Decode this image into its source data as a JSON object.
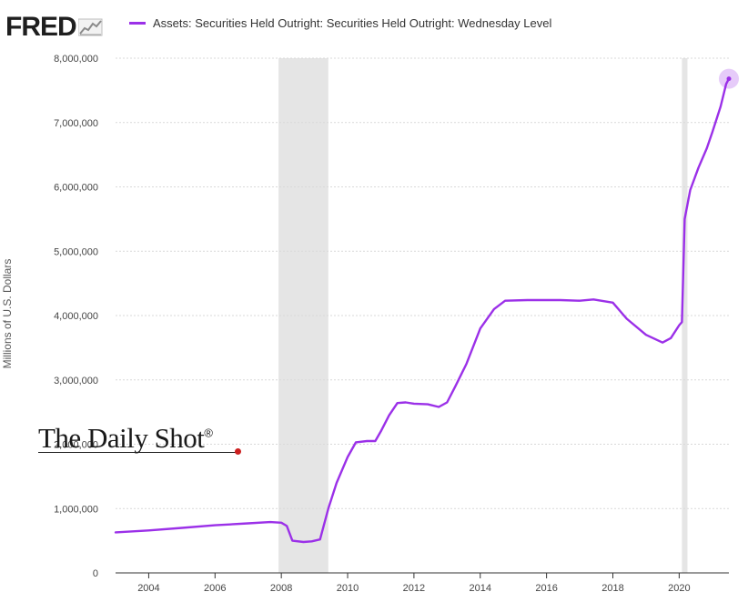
{
  "header": {
    "logo": "FRED",
    "logo_icon": "line-chart-icon"
  },
  "chart_data": {
    "type": "line",
    "title": "",
    "ylabel": "Millions of U.S. Dollars",
    "xlabel": "",
    "ylim": [
      0,
      8000000
    ],
    "xlim": [
      "2003-01",
      "2021-07"
    ],
    "grid": true,
    "legend_position": "top-left",
    "yticks": [
      {
        "value": 0,
        "label": "0"
      },
      {
        "value": 1000000,
        "label": "1,000,000"
      },
      {
        "value": 2000000,
        "label": "2,000,000"
      },
      {
        "value": 3000000,
        "label": "3,000,000"
      },
      {
        "value": 4000000,
        "label": "4,000,000"
      },
      {
        "value": 5000000,
        "label": "5,000,000"
      },
      {
        "value": 6000000,
        "label": "6,000,000"
      },
      {
        "value": 7000000,
        "label": "7,000,000"
      },
      {
        "value": 8000000,
        "label": "8,000,000"
      }
    ],
    "xticks": [
      {
        "value": 2004,
        "label": "2004"
      },
      {
        "value": 2006,
        "label": "2006"
      },
      {
        "value": 2008,
        "label": "2008"
      },
      {
        "value": 2010,
        "label": "2010"
      },
      {
        "value": 2012,
        "label": "2012"
      },
      {
        "value": 2014,
        "label": "2014"
      },
      {
        "value": 2016,
        "label": "2016"
      },
      {
        "value": 2018,
        "label": "2018"
      },
      {
        "value": 2020,
        "label": "2020"
      }
    ],
    "recessions": [
      {
        "start": "2007-12",
        "end": "2009-06"
      },
      {
        "start": "2020-02",
        "end": "2020-04"
      }
    ],
    "series": [
      {
        "name": "Assets: Securities Held Outright: Securities Held Outright: Wednesday Level",
        "color": "#9b30e8",
        "points": [
          [
            "2003-01",
            630000
          ],
          [
            "2004-01",
            660000
          ],
          [
            "2005-01",
            700000
          ],
          [
            "2006-01",
            740000
          ],
          [
            "2007-01",
            770000
          ],
          [
            "2007-09",
            790000
          ],
          [
            "2008-01",
            780000
          ],
          [
            "2008-03",
            730000
          ],
          [
            "2008-05",
            500000
          ],
          [
            "2008-09",
            480000
          ],
          [
            "2008-12",
            490000
          ],
          [
            "2009-03",
            520000
          ],
          [
            "2009-06",
            1000000
          ],
          [
            "2009-09",
            1400000
          ],
          [
            "2010-01",
            1800000
          ],
          [
            "2010-04",
            2030000
          ],
          [
            "2010-08",
            2050000
          ],
          [
            "2010-11",
            2050000
          ],
          [
            "2011-01",
            2200000
          ],
          [
            "2011-04",
            2450000
          ],
          [
            "2011-07",
            2640000
          ],
          [
            "2011-10",
            2650000
          ],
          [
            "2012-01",
            2630000
          ],
          [
            "2012-06",
            2620000
          ],
          [
            "2012-10",
            2580000
          ],
          [
            "2013-01",
            2650000
          ],
          [
            "2013-04",
            2900000
          ],
          [
            "2013-08",
            3250000
          ],
          [
            "2014-01",
            3800000
          ],
          [
            "2014-06",
            4100000
          ],
          [
            "2014-10",
            4230000
          ],
          [
            "2015-06",
            4240000
          ],
          [
            "2016-06",
            4240000
          ],
          [
            "2017-01",
            4230000
          ],
          [
            "2017-06",
            4250000
          ],
          [
            "2018-01",
            4200000
          ],
          [
            "2018-06",
            3950000
          ],
          [
            "2019-01",
            3700000
          ],
          [
            "2019-07",
            3580000
          ],
          [
            "2019-10",
            3650000
          ],
          [
            "2020-01",
            3850000
          ],
          [
            "2020-02",
            3900000
          ],
          [
            "2020-03",
            5500000
          ],
          [
            "2020-05",
            5950000
          ],
          [
            "2020-08",
            6300000
          ],
          [
            "2020-11",
            6600000
          ],
          [
            "2021-01",
            6850000
          ],
          [
            "2021-04",
            7250000
          ],
          [
            "2021-06",
            7600000
          ],
          [
            "2021-07",
            7680000
          ]
        ]
      }
    ]
  },
  "watermark": {
    "text": "The Daily Shot",
    "mark": "®"
  }
}
